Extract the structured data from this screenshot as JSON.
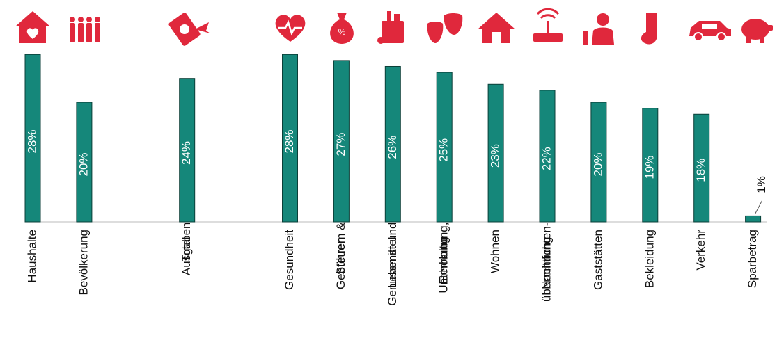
{
  "chart_data": {
    "type": "bar",
    "categories": [
      [
        "Haushalte"
      ],
      [
        "Bevölkerung"
      ],
      null,
      [
        "Ausgaben",
        "Total"
      ],
      null,
      [
        "Gesundheit"
      ],
      [
        "Steuern &",
        "Gebühren"
      ],
      [
        "Lebens- und",
        "Genussmittel"
      ],
      [
        "Unterhaltung,",
        "Erholung"
      ],
      [
        "Wohnen"
      ],
      [
        "Nachrichten-",
        "übermittlung"
      ],
      [
        "Gaststätten"
      ],
      [
        "Bekleidung"
      ],
      [
        "Verkehr"
      ],
      [
        "Sparbetrag"
      ]
    ],
    "values": [
      28,
      20,
      null,
      24,
      null,
      28,
      27,
      26,
      25,
      23,
      22,
      20,
      19,
      18,
      1
    ],
    "value_labels": [
      "28%",
      "20%",
      null,
      "24%",
      null,
      "28%",
      "27%",
      "26%",
      "25%",
      "23%",
      "22%",
      "20%",
      "19%",
      "18%",
      "1%"
    ],
    "color": "#15877a",
    "ylim": [
      0,
      28.5
    ]
  }
}
